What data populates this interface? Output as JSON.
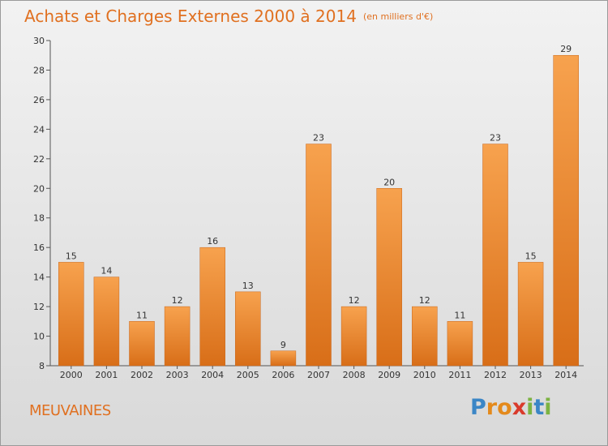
{
  "title": "Achats et Charges Externes 2000 à 2014",
  "subtitle": "(en milliers d'€)",
  "commune": "MEUVAINES",
  "logo": {
    "letters": [
      "P",
      "r",
      "o",
      "x",
      "i",
      "t",
      "i"
    ],
    "colors": [
      "#3b86c6",
      "#e48a1c",
      "#e48a1c",
      "#d93a2b",
      "#7cb342",
      "#3b86c6",
      "#7cb342"
    ]
  },
  "colors": {
    "accent": "#e07020",
    "bar_top": "#f7a24e",
    "bar_bottom": "#d86e18",
    "axis": "#555555"
  },
  "chart_data": {
    "type": "bar",
    "title": "Achats et Charges Externes 2000 à 2014",
    "subtitle": "(en milliers d'€)",
    "categories": [
      "2000",
      "2001",
      "2002",
      "2003",
      "2004",
      "2005",
      "2006",
      "2007",
      "2008",
      "2009",
      "2010",
      "2011",
      "2012",
      "2013",
      "2014"
    ],
    "values": [
      15,
      14,
      11,
      12,
      16,
      13,
      9,
      23,
      12,
      20,
      12,
      11,
      23,
      15,
      29
    ],
    "ylim": [
      8,
      30
    ],
    "yticks": [
      8,
      10,
      12,
      14,
      16,
      18,
      20,
      22,
      24,
      26,
      28,
      30
    ],
    "grid": false,
    "xlabel": "",
    "ylabel": ""
  }
}
